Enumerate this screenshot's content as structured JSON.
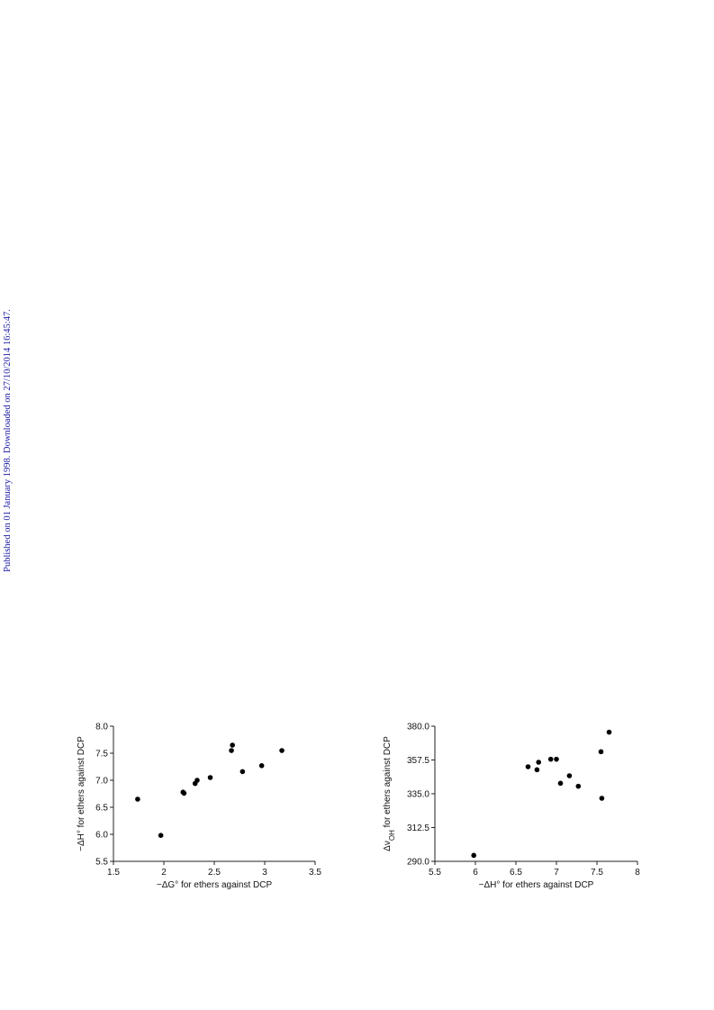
{
  "side_note": "Published on 01 January 1998. Downloaded on 27/10/2014 16:45:47.",
  "chart_data": [
    {
      "type": "scatter",
      "xlabel": "−ΔG° for ethers against DCP",
      "ylabel": "−ΔH° for ethers against DCP",
      "xlim": [
        1.5,
        3.5
      ],
      "ylim": [
        5.5,
        8.0
      ],
      "xticks": [
        "1.5",
        "2",
        "2.5",
        "3",
        "3.5"
      ],
      "xtick_values": [
        1.5,
        2,
        2.5,
        3,
        3.5
      ],
      "yticks": [
        "5.5",
        "6.0",
        "6.5",
        "7.0",
        "7.5",
        "8.0"
      ],
      "ytick_values": [
        5.5,
        6.0,
        6.5,
        7.0,
        7.5,
        8.0
      ],
      "grid": false,
      "points": [
        {
          "x": 1.74,
          "y": 6.65
        },
        {
          "x": 1.97,
          "y": 5.98
        },
        {
          "x": 2.19,
          "y": 6.78
        },
        {
          "x": 2.2,
          "y": 6.76
        },
        {
          "x": 2.31,
          "y": 6.94
        },
        {
          "x": 2.33,
          "y": 7.0
        },
        {
          "x": 2.46,
          "y": 7.05
        },
        {
          "x": 2.67,
          "y": 7.55
        },
        {
          "x": 2.68,
          "y": 7.65
        },
        {
          "x": 2.78,
          "y": 7.16
        },
        {
          "x": 2.97,
          "y": 7.27
        },
        {
          "x": 3.17,
          "y": 7.55
        }
      ]
    },
    {
      "type": "scatter",
      "xlabel": "−ΔH° for ethers against DCP",
      "ylabel_main": "Δν",
      "ylabel_sub": "OH",
      "ylabel_rest": " for ethers against DCP",
      "xlim": [
        5.5,
        8
      ],
      "ylim": [
        290.0,
        380.0
      ],
      "xticks": [
        "5.5",
        "6",
        "6.5",
        "7",
        "7.5",
        "8"
      ],
      "xtick_values": [
        5.5,
        6,
        6.5,
        7,
        7.5,
        8
      ],
      "yticks": [
        "290.0",
        "312.5",
        "335.0",
        "357.5",
        "380.0"
      ],
      "ytick_values": [
        290.0,
        312.5,
        335.0,
        357.5,
        380.0
      ],
      "grid": false,
      "points": [
        {
          "x": 5.98,
          "y": 294
        },
        {
          "x": 6.65,
          "y": 353
        },
        {
          "x": 6.76,
          "y": 351
        },
        {
          "x": 6.78,
          "y": 356
        },
        {
          "x": 6.93,
          "y": 358
        },
        {
          "x": 7.0,
          "y": 358
        },
        {
          "x": 7.05,
          "y": 342
        },
        {
          "x": 7.16,
          "y": 347
        },
        {
          "x": 7.27,
          "y": 340
        },
        {
          "x": 7.55,
          "y": 363
        },
        {
          "x": 7.56,
          "y": 332
        },
        {
          "x": 7.65,
          "y": 376
        }
      ]
    }
  ]
}
